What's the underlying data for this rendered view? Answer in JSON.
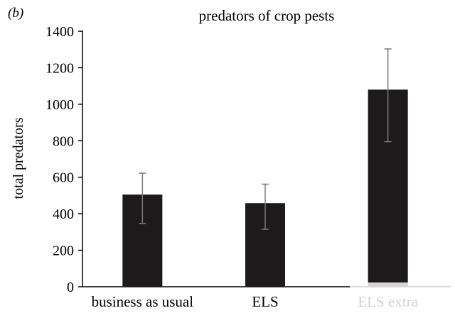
{
  "panel_label": "(b)",
  "chart_data": {
    "type": "bar",
    "title": "predators of crop pests",
    "xlabel": "",
    "ylabel": "total predators",
    "categories": [
      "business as usual",
      "ELS",
      "ELS extra"
    ],
    "values": [
      505,
      458,
      1080
    ],
    "error_low": [
      347,
      315,
      795
    ],
    "error_high": [
      622,
      562,
      1303
    ],
    "ylim": [
      0,
      1400
    ],
    "yticks": [
      0,
      200,
      400,
      600,
      800,
      1000,
      1200,
      1400
    ],
    "grid": false,
    "bar_color": "#1c1a1a",
    "error_bar_color": "#7a7a7a",
    "axis_color": "#000000"
  }
}
